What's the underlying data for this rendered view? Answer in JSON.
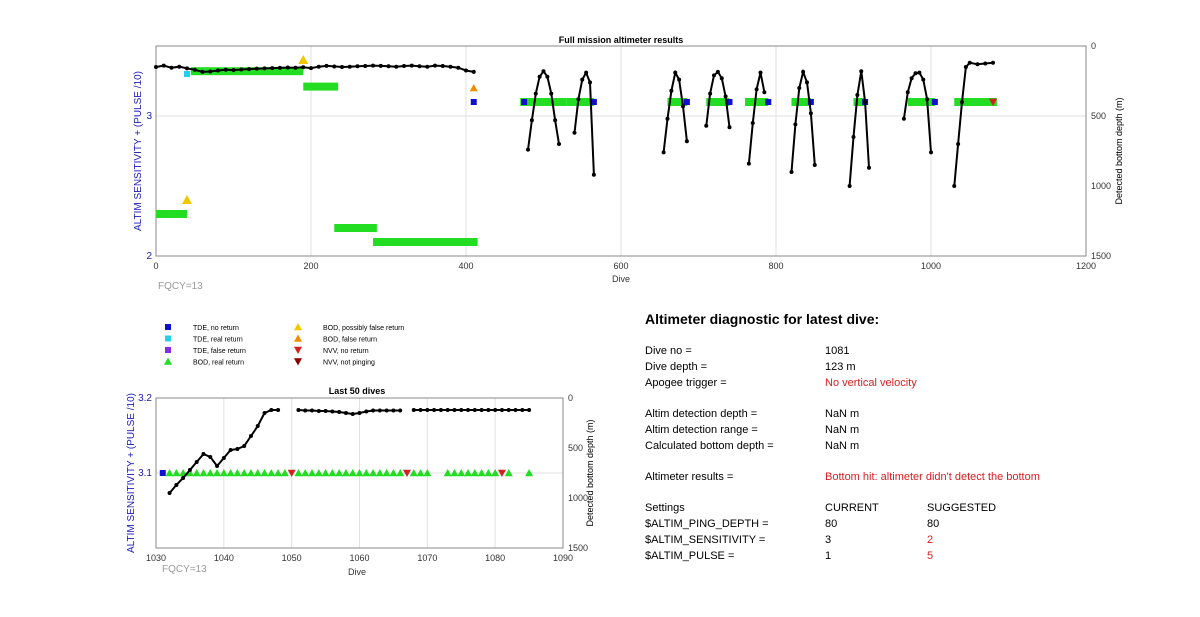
{
  "chart_data": [
    {
      "type": "scatter",
      "title": "Full mission altimeter results",
      "xlabel": "Dive",
      "ylabel_left": "ALTIM SENSITIVITY + (PULSE /10)",
      "ylabel_right": "Detected bottom depth (m)",
      "xlim": [
        0,
        1200
      ],
      "xticks": [
        0,
        200,
        400,
        600,
        800,
        1000,
        1200
      ],
      "ylim_left": [
        2,
        3.5
      ],
      "yticks_left": [
        2,
        3
      ],
      "ylim_right_reversed": [
        0,
        1500
      ],
      "yticks_right": [
        0,
        500,
        1000,
        1500
      ],
      "annotation": "FQCY=13",
      "grid": true,
      "bottom_depth_segments": [
        {
          "x": [
            0,
            10,
            20,
            30,
            40,
            50,
            60,
            70,
            80,
            90,
            100,
            110,
            120,
            130,
            140,
            150,
            160,
            170,
            180,
            190,
            200,
            210,
            220,
            230,
            240,
            250,
            260,
            270,
            280,
            290,
            300,
            310,
            320,
            330,
            340,
            350,
            360,
            370,
            380,
            390,
            400,
            410
          ],
          "y": [
            150,
            140,
            155,
            148,
            160,
            170,
            185,
            182,
            175,
            170,
            172,
            168,
            165,
            162,
            160,
            158,
            156,
            154,
            155,
            152,
            158,
            148,
            142,
            146,
            150,
            148,
            145,
            143,
            140,
            142,
            145,
            148,
            143,
            140,
            145,
            148,
            140,
            143,
            148,
            155,
            175,
            185
          ]
        },
        {
          "x": [
            480,
            485,
            490,
            495,
            500,
            505,
            510,
            515,
            520
          ],
          "y": [
            740,
            530,
            340,
            220,
            180,
            220,
            340,
            530,
            700
          ]
        },
        {
          "x": [
            540,
            545,
            550,
            555,
            560,
            565
          ],
          "y": [
            620,
            380,
            240,
            190,
            260,
            920
          ]
        },
        {
          "x": [
            655,
            660,
            665,
            670,
            675,
            680,
            685
          ],
          "y": [
            760,
            520,
            320,
            190,
            240,
            430,
            680
          ]
        },
        {
          "x": [
            710,
            715,
            720,
            725,
            730,
            735,
            740
          ],
          "y": [
            570,
            340,
            210,
            185,
            230,
            360,
            580
          ]
        },
        {
          "x": [
            765,
            770,
            775,
            780,
            785
          ],
          "y": [
            840,
            550,
            310,
            190,
            330
          ]
        },
        {
          "x": [
            820,
            825,
            830,
            835,
            840,
            845,
            850
          ],
          "y": [
            900,
            560,
            300,
            185,
            260,
            480,
            850
          ]
        },
        {
          "x": [
            895,
            900,
            905,
            910,
            915,
            920
          ],
          "y": [
            1000,
            650,
            350,
            180,
            400,
            870
          ]
        },
        {
          "x": [
            965,
            970,
            975,
            980,
            985,
            990,
            995,
            1000
          ],
          "y": [
            520,
            330,
            230,
            195,
            190,
            240,
            380,
            760
          ]
        },
        {
          "x": [
            1030,
            1035,
            1040,
            1045,
            1050,
            1060,
            1070,
            1080
          ],
          "y": [
            1000,
            700,
            400,
            150,
            120,
            130,
            125,
            120
          ]
        }
      ],
      "bod_real_return_bands": [
        {
          "x": [
            0,
            40
          ],
          "y": 2.3
        },
        {
          "x": [
            45,
            190
          ],
          "y": 3.32
        },
        {
          "x": [
            190,
            235
          ],
          "y": 3.21
        },
        {
          "x": [
            230,
            285
          ],
          "y": 2.2
        },
        {
          "x": [
            280,
            415
          ],
          "y": 2.1
        },
        {
          "x": [
            470,
            530
          ],
          "y": 3.1
        },
        {
          "x": [
            530,
            565
          ],
          "y": 3.1
        },
        {
          "x": [
            660,
            685
          ],
          "y": 3.1
        },
        {
          "x": [
            710,
            740
          ],
          "y": 3.1
        },
        {
          "x": [
            760,
            790
          ],
          "y": 3.1
        },
        {
          "x": [
            820,
            845
          ],
          "y": 3.1
        },
        {
          "x": [
            900,
            915
          ],
          "y": 3.1
        },
        {
          "x": [
            970,
            1005
          ],
          "y": 3.1
        },
        {
          "x": [
            1030,
            1085
          ],
          "y": 3.1
        }
      ],
      "tde_no_return_points": [
        [
          410,
          3.1
        ],
        [
          475,
          3.1
        ],
        [
          565,
          3.1
        ],
        [
          685,
          3.1
        ],
        [
          740,
          3.1
        ],
        [
          790,
          3.1
        ],
        [
          845,
          3.1
        ],
        [
          915,
          3.1
        ],
        [
          1005,
          3.1
        ]
      ],
      "tde_real_return_points": [
        [
          40,
          3.3
        ]
      ],
      "bod_possibly_false_points": [
        [
          40,
          2.4
        ],
        [
          190,
          3.4
        ]
      ],
      "bod_false_points": [
        [
          410,
          3.2
        ]
      ],
      "nvv_no_return_points": [
        [
          1080,
          3.1
        ]
      ]
    },
    {
      "type": "scatter",
      "title": "Last 50 dives",
      "xlabel": "Dive",
      "ylabel_left": "ALTIM SENSITIVITY + (PULSE /10)",
      "ylabel_right": "Detected bottom depth (m)",
      "xlim": [
        1030,
        1090
      ],
      "xticks": [
        1030,
        1040,
        1050,
        1060,
        1070,
        1080,
        1090
      ],
      "ylim_left": [
        3,
        3.2
      ],
      "yticks_left": [
        3.1,
        3.2
      ],
      "ylim_right_reversed": [
        0,
        1500
      ],
      "yticks_right": [
        0,
        500,
        1000,
        1500
      ],
      "annotation": "FQCY=13",
      "grid": true,
      "bottom_depth_segments": [
        {
          "x": [
            1032,
            1033,
            1034,
            1035,
            1036,
            1037,
            1038,
            1039,
            1040,
            1041,
            1042,
            1043,
            1044,
            1045,
            1046,
            1047,
            1048
          ],
          "y": [
            950,
            870,
            800,
            720,
            640,
            560,
            590,
            680,
            600,
            520,
            510,
            480,
            380,
            280,
            150,
            120,
            120
          ]
        },
        {
          "x": [
            1051,
            1052,
            1053,
            1054,
            1055,
            1056,
            1057,
            1058,
            1059,
            1060,
            1061,
            1062,
            1063,
            1064,
            1065,
            1066
          ],
          "y": [
            120,
            125,
            125,
            130,
            130,
            135,
            140,
            150,
            160,
            150,
            135,
            125,
            125,
            125,
            125,
            125
          ]
        },
        {
          "x": [
            1068,
            1069,
            1070,
            1071,
            1072,
            1073,
            1074,
            1075,
            1076,
            1077,
            1078,
            1079,
            1080,
            1081,
            1082,
            1083,
            1084,
            1085
          ],
          "y": [
            120,
            120,
            120,
            120,
            120,
            120,
            120,
            120,
            120,
            120,
            120,
            120,
            120,
            120,
            120,
            120,
            120,
            120
          ]
        }
      ],
      "bod_real_return_dives": [
        1032,
        1033,
        1034,
        1035,
        1036,
        1037,
        1038,
        1039,
        1040,
        1041,
        1042,
        1043,
        1044,
        1045,
        1046,
        1047,
        1048,
        1049,
        1051,
        1052,
        1053,
        1054,
        1055,
        1056,
        1057,
        1058,
        1059,
        1060,
        1061,
        1062,
        1063,
        1064,
        1065,
        1066,
        1068,
        1069,
        1070,
        1073,
        1074,
        1075,
        1076,
        1077,
        1078,
        1079,
        1080,
        1082,
        1085
      ],
      "nvv_no_return_dives": [
        1050,
        1067,
        1081
      ],
      "tde_no_return_dives": [
        1031
      ],
      "level": 3.1
    }
  ],
  "legend": {
    "items": [
      {
        "label": "TDE, no return",
        "marker": "square",
        "color": "#1010cc"
      },
      {
        "label": "TDE, real return",
        "marker": "square",
        "color": "#22d0ea"
      },
      {
        "label": "TDE, false return",
        "marker": "square",
        "color": "#8a2be2"
      },
      {
        "label": "BOD, real return",
        "marker": "triangle-up",
        "color": "#22dd22"
      },
      {
        "label": "BOD, possibly false return",
        "marker": "triangle-up",
        "color": "#f0c800"
      },
      {
        "label": "BOD, false return",
        "marker": "triangle-up",
        "color": "#f08c00"
      },
      {
        "label": "NVV, no return",
        "marker": "triangle-down",
        "color": "#d42020"
      },
      {
        "label": "NVV, not pinging",
        "marker": "triangle-down",
        "color": "#8b0000"
      }
    ]
  },
  "diagnostic": {
    "title": "Altimeter diagnostic for latest dive:",
    "dive_no_label": "Dive no =",
    "dive_no": "1081",
    "dive_depth_label": "Dive depth =",
    "dive_depth": "123 m",
    "apogee_label": "Apogee trigger =",
    "apogee": "No vertical velocity",
    "det_depth_label": "Altim detection depth =",
    "det_depth": "NaN m",
    "det_range_label": "Altim detection range =",
    "det_range": "NaN m",
    "calc_depth_label": "Calculated bottom depth =",
    "calc_depth": "NaN m",
    "results_label": "Altimeter results =",
    "results": "Bottom hit: altimeter didn't detect the bottom",
    "settings_label": "Settings",
    "current_label": "CURRENT",
    "suggested_label": "SUGGESTED",
    "ping_label": "$ALTIM_PING_DEPTH =",
    "ping_current": "80",
    "ping_suggested": "80",
    "sens_label": "$ALTIM_SENSITIVITY =",
    "sens_current": "3",
    "sens_suggested": "2",
    "pulse_label": "$ALTIM_PULSE =",
    "pulse_current": "1",
    "pulse_suggested": "5"
  }
}
